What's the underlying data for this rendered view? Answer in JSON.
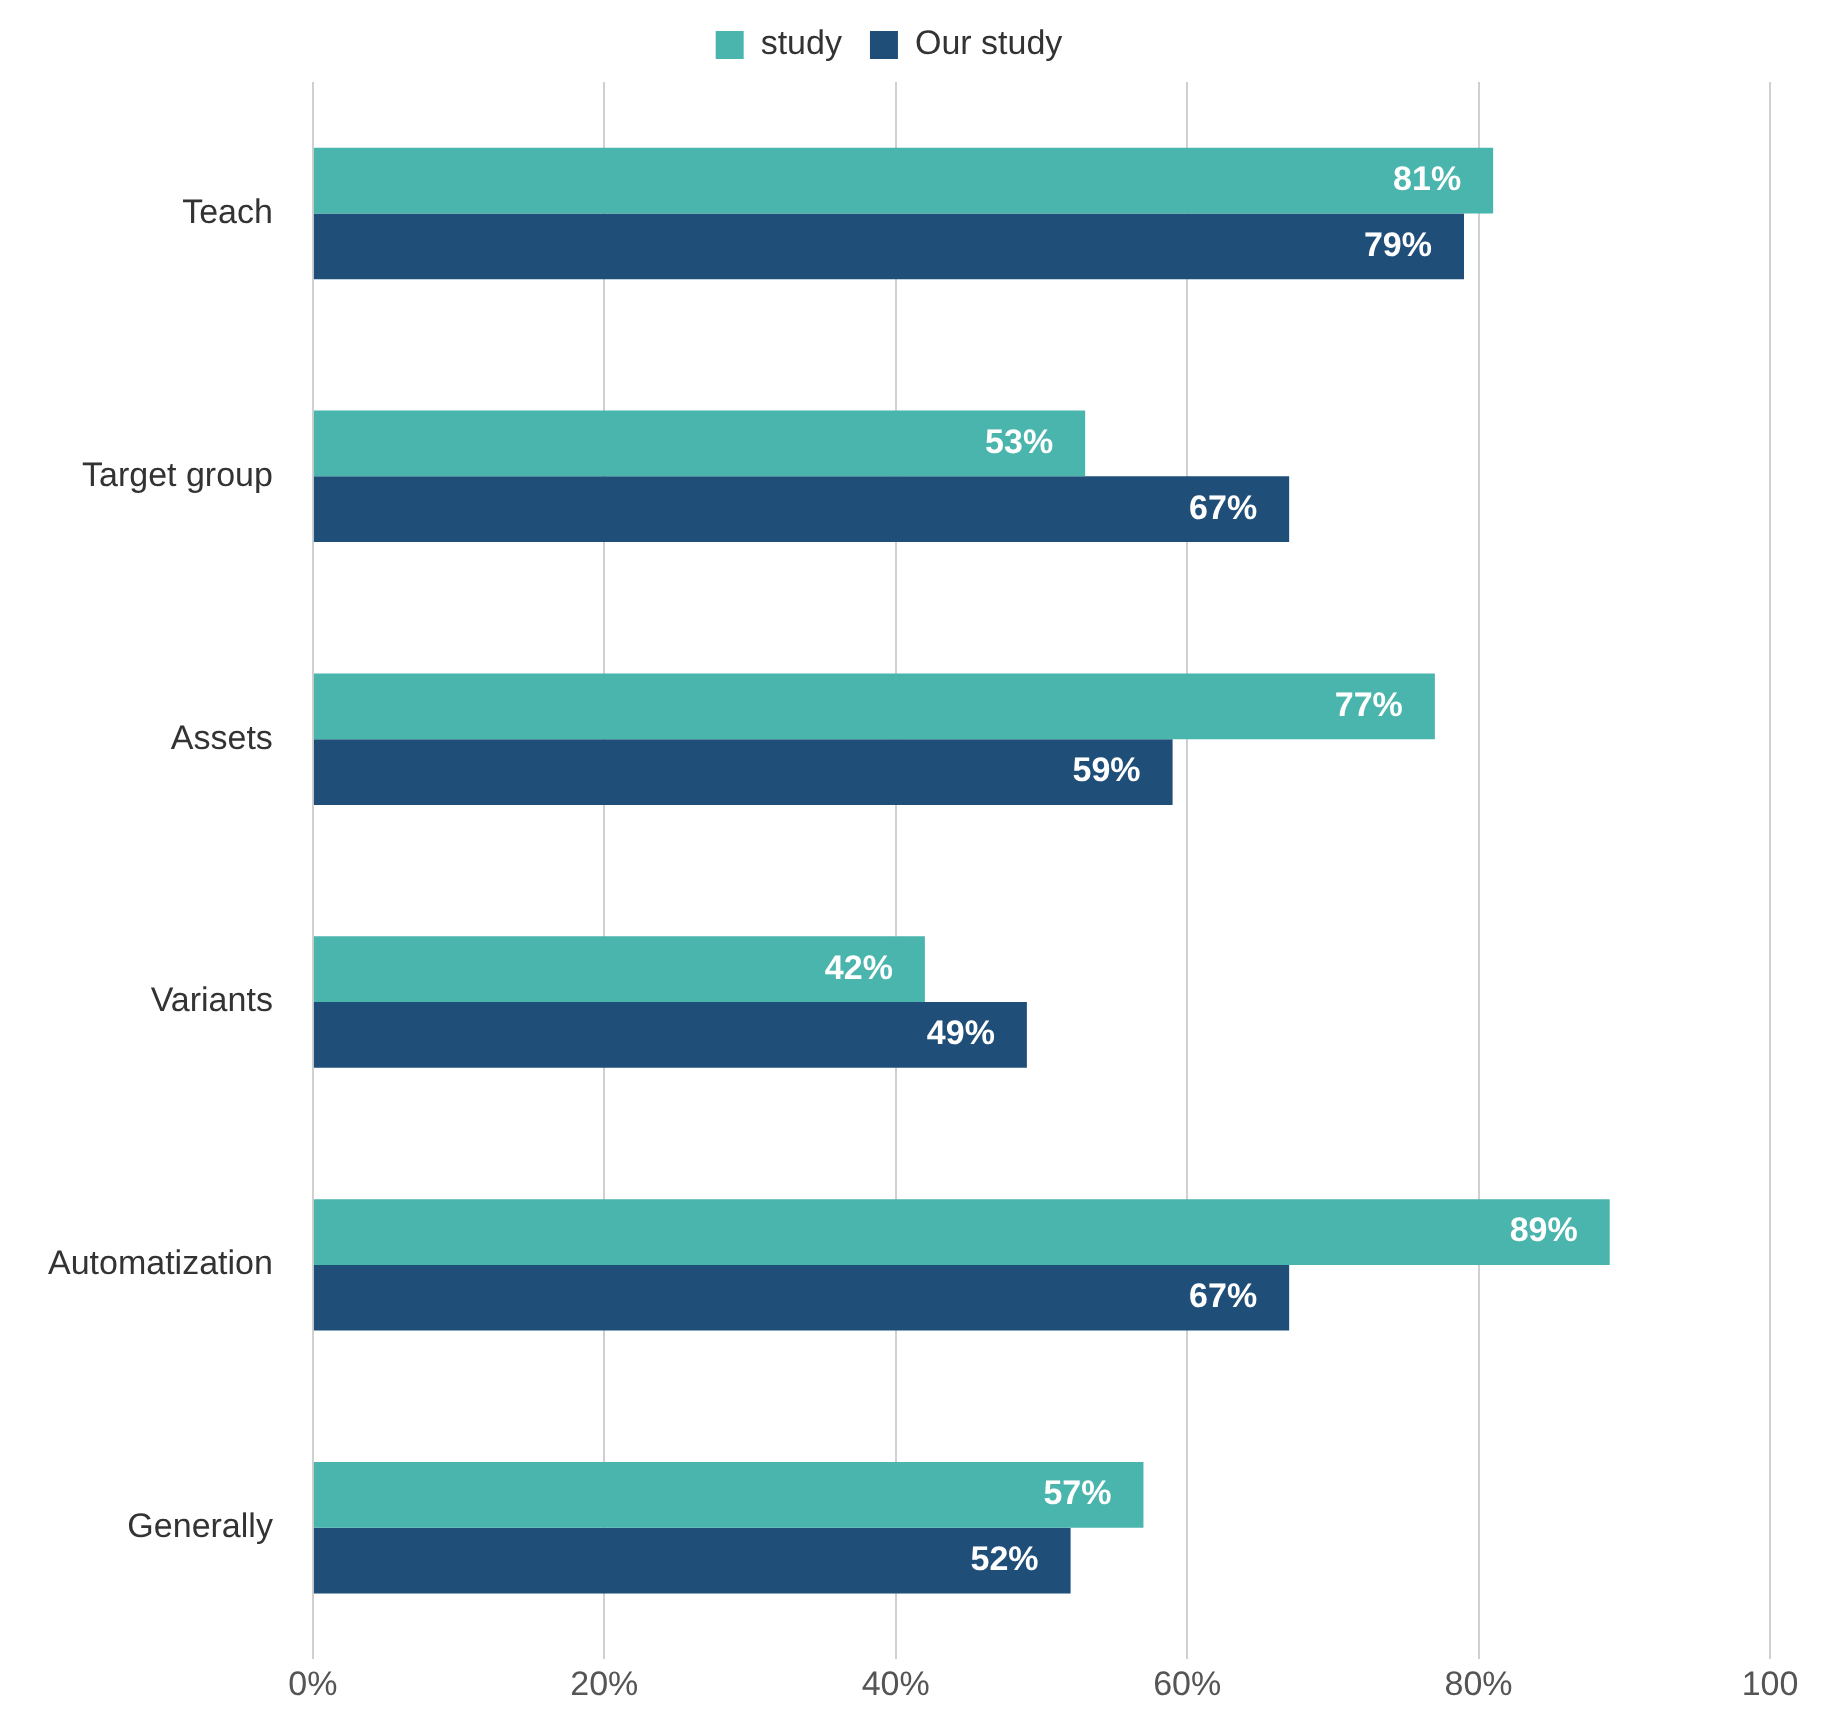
{
  "chart_data": {
    "type": "bar",
    "orientation": "horizontal",
    "categories": [
      "Teach",
      "Target group",
      "Assets",
      "Variants",
      "Automatization",
      "Generally"
    ],
    "series": [
      {
        "name": "study",
        "color": "#4ab5ad",
        "values": [
          81,
          53,
          77,
          42,
          89,
          57
        ],
        "value_labels": [
          "81%",
          "53%",
          "77%",
          "42%",
          "89%",
          "57%"
        ]
      },
      {
        "name": "Our study",
        "color": "#1f4e79",
        "values": [
          79,
          67,
          59,
          49,
          67,
          52
        ],
        "value_labels": [
          "79%",
          "67%",
          "59%",
          "49%",
          "67%",
          "52%"
        ]
      }
    ],
    "xlim": [
      0,
      100
    ],
    "xticks": [
      {
        "value": 0,
        "label": "0%"
      },
      {
        "value": 20,
        "label": "20%"
      },
      {
        "value": 40,
        "label": "40%"
      },
      {
        "value": 60,
        "label": "60%"
      },
      {
        "value": 80,
        "label": "80%"
      },
      {
        "value": 100,
        "label": "100"
      }
    ],
    "grid": "x",
    "legend": "top"
  }
}
